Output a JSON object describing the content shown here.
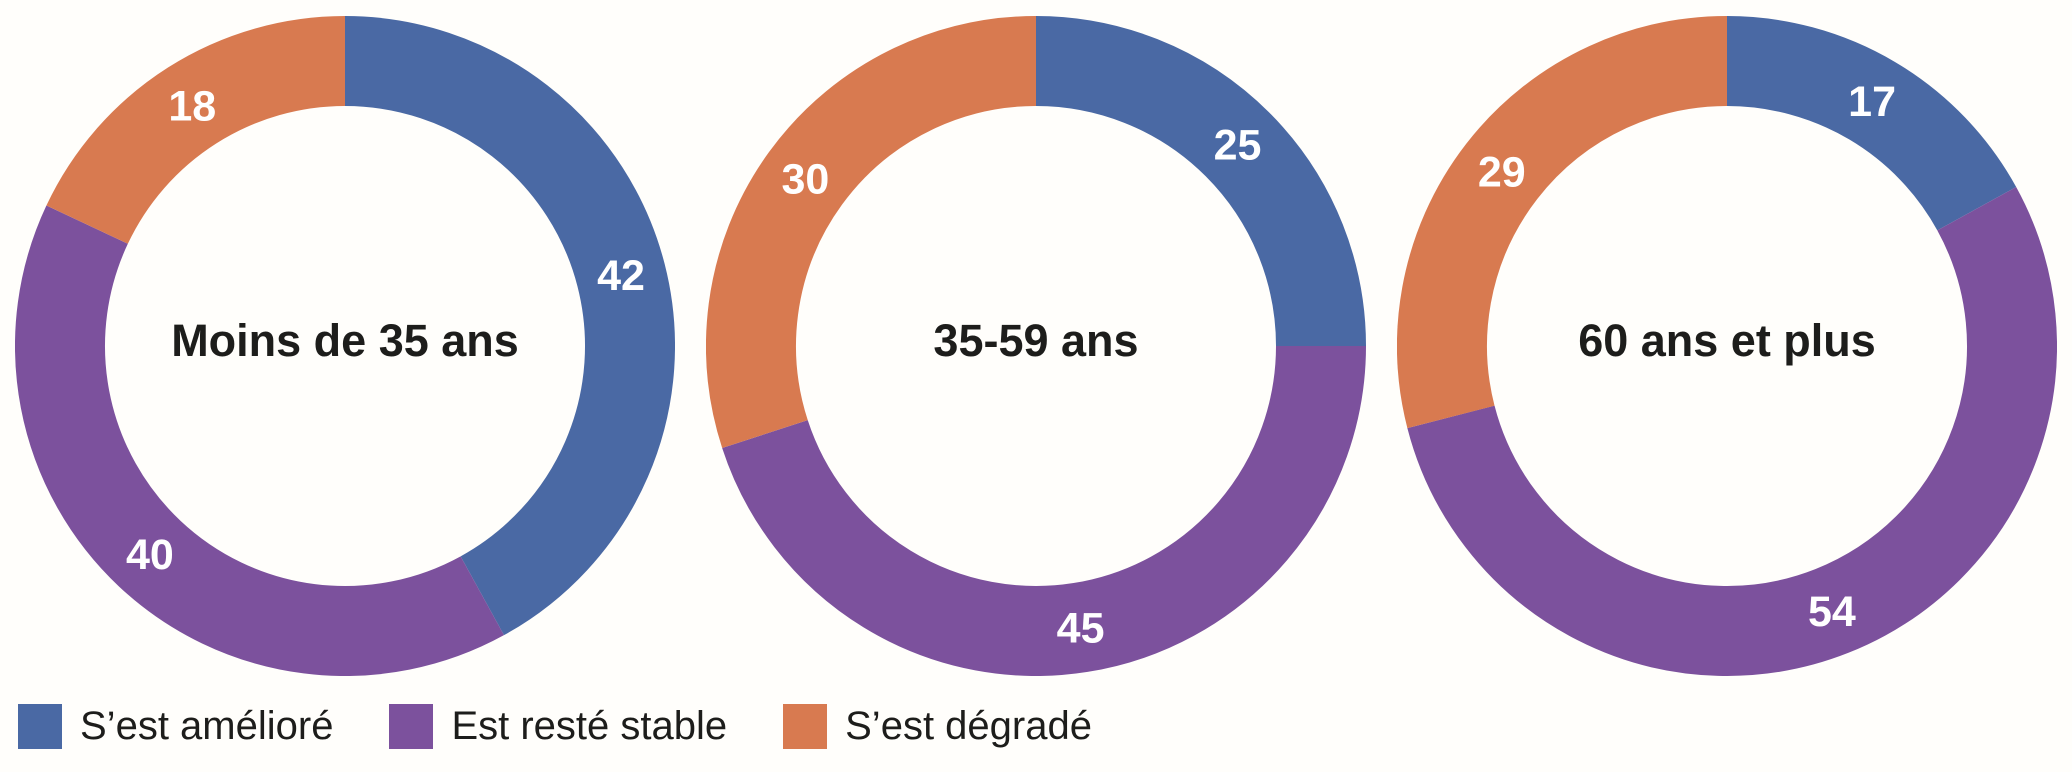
{
  "figure": {
    "background_color": "#fffefb",
    "text_color": "#1d1d1b",
    "value_label_color": "#ffffff"
  },
  "palette": {
    "blue": "#4a69a4",
    "purple": "#7c519d",
    "orange": "#d87a50"
  },
  "legend": {
    "items": [
      {
        "label": "S’est amélioré",
        "color": "#4a69a4"
      },
      {
        "label": "Est resté stable",
        "color": "#7c519d"
      },
      {
        "label": "S’est dégradé",
        "color": "#d87a50"
      }
    ]
  },
  "chart_data": [
    {
      "type": "pie",
      "subtype": "donut",
      "center_label": "Moins de 35 ans",
      "categories": [
        "S’est amélioré",
        "Est resté stable",
        "S’est dégradé"
      ],
      "values": [
        42,
        40,
        18
      ],
      "colors": [
        "#4a69a4",
        "#7c519d",
        "#d87a50"
      ],
      "start_angle_deg": 0,
      "direction": "clockwise",
      "value_labels_shown": true,
      "legend_position": "bottom"
    },
    {
      "type": "pie",
      "subtype": "donut",
      "center_label": "35-59 ans",
      "categories": [
        "S’est amélioré",
        "Est resté stable",
        "S’est dégradé"
      ],
      "values": [
        25,
        45,
        30
      ],
      "colors": [
        "#4a69a4",
        "#7c519d",
        "#d87a50"
      ],
      "start_angle_deg": 0,
      "direction": "clockwise",
      "value_labels_shown": true,
      "legend_position": "bottom"
    },
    {
      "type": "pie",
      "subtype": "donut",
      "center_label": "60 ans et plus",
      "categories": [
        "S’est amélioré",
        "Est resté stable",
        "S’est dégradé"
      ],
      "values": [
        17,
        54,
        29
      ],
      "colors": [
        "#4a69a4",
        "#7c519d",
        "#d87a50"
      ],
      "start_angle_deg": 0,
      "direction": "clockwise",
      "value_labels_shown": true,
      "legend_position": "bottom"
    }
  ]
}
